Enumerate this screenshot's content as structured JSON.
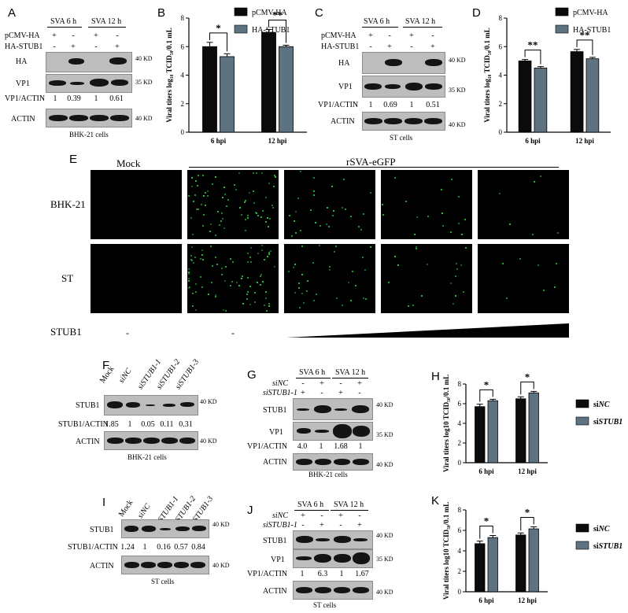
{
  "panels": {
    "A": {
      "letter": "A",
      "headers": [
        "SVA 6 h",
        "SVA 12 h"
      ],
      "row_labels": [
        "pCMV-HA",
        "HA-STUB1"
      ],
      "signs": [
        [
          "+",
          "-",
          "+",
          "-"
        ],
        [
          "-",
          "+",
          "-",
          "+"
        ]
      ],
      "blots": [
        "HA",
        "VP1",
        "ACTIN"
      ],
      "markers": [
        "40 KD",
        "35 KD",
        "40 KD"
      ],
      "ratio_label": "VP1/ACTIN",
      "ratios": [
        "1",
        "0.39",
        "1",
        "0.61"
      ],
      "cells": "BHK-21 cells"
    },
    "C": {
      "letter": "C",
      "headers": [
        "SVA 6 h",
        "SVA 12 h"
      ],
      "row_labels": [
        "pCMV-HA",
        "HA-STUB1"
      ],
      "signs": [
        [
          "+",
          "-",
          "+",
          "-"
        ],
        [
          "-",
          "+",
          "-",
          "+"
        ]
      ],
      "blots": [
        "HA",
        "VP1",
        "ACTIN"
      ],
      "markers": [
        "40 KD",
        "35 KD",
        "40 KD"
      ],
      "ratio_label": "VP1/ACTIN",
      "ratios": [
        "1",
        "0.69",
        "1",
        "0.51"
      ],
      "cells": "ST cells"
    },
    "E": {
      "letter": "E",
      "mock": "Mock",
      "virus": "rSVA-eGFP",
      "rows": [
        "BHK-21",
        "ST"
      ],
      "stub_label": "STUB1",
      "stub_signs": [
        "-",
        "-"
      ]
    },
    "F": {
      "letter": "F",
      "lanes": [
        "Mock",
        "siNC",
        "siSTUB1-1",
        "siSTUB1-2",
        "siSTUB1-3"
      ],
      "blots": [
        "STUB1",
        "ACTIN"
      ],
      "markers": [
        "40 KD",
        "40 KD"
      ],
      "ratio_label": "STUB1/ACTIN",
      "ratios": [
        "1.85",
        "1",
        "0.05",
        "0.11",
        "0.31"
      ],
      "cells": "BHK-21 cells"
    },
    "G": {
      "letter": "G",
      "headers": [
        "SVA 6 h",
        "SVA 12 h"
      ],
      "row_labels": [
        "siNC",
        "siSTUB1-1"
      ],
      "signs": [
        [
          "-",
          "+",
          "-",
          "+"
        ],
        [
          "+",
          "-",
          "+",
          "-"
        ]
      ],
      "blots": [
        "STUB1",
        "VP1",
        "ACTIN"
      ],
      "markers": [
        "40 KD",
        "35 KD",
        "40 KD"
      ],
      "ratio_label": "VP1/ACTIN",
      "ratios": [
        "4.0",
        "1",
        "1.68",
        "1"
      ],
      "cells": "BHK-21 cells"
    },
    "I": {
      "letter": "I",
      "lanes": [
        "Mock",
        "siNC",
        "siSTUB1-1",
        "siSTUB1-2",
        "siSTUB1-3"
      ],
      "blots": [
        "STUB1",
        "ACTIN"
      ],
      "markers": [
        "40 KD",
        "40 KD"
      ],
      "ratio_label": "STUB1/ACTIN",
      "ratios": [
        "1.24",
        "1",
        "0.16",
        "0.57",
        "0.84"
      ],
      "cells": "ST cells"
    },
    "J": {
      "letter": "J",
      "headers": [
        "SVA 6 h",
        "SVA 12 h"
      ],
      "row_labels": [
        "siNC",
        "siSTUB1-1"
      ],
      "signs": [
        [
          "+",
          "-",
          "+",
          "-"
        ],
        [
          "-",
          "+",
          "-",
          "+"
        ]
      ],
      "blots": [
        "STUB1",
        "VP1",
        "ACTIN"
      ],
      "markers": [
        "40 KD",
        "35 KD",
        "40 KD"
      ],
      "ratio_label": "VP1/ACTIN",
      "ratios": [
        "1",
        "6.3",
        "1",
        "1.67"
      ],
      "cells": "ST cells"
    }
  },
  "chart_data": [
    {
      "id": "B",
      "type": "bar",
      "letter": "B",
      "categories": [
        "6 hpi",
        "12 hpi"
      ],
      "series": [
        {
          "name": "pCMV-HA",
          "values": [
            6.0,
            7.0
          ],
          "errors": [
            0.3,
            0.2
          ]
        },
        {
          "name": "HA-STUB1",
          "values": [
            5.3,
            6.0
          ],
          "errors": [
            0.2,
            0.1
          ]
        }
      ],
      "ylabel": "Viral titers log₁₀ TCID₅₀/0.1 mL",
      "ylim": [
        0,
        8
      ],
      "yticks": [
        0,
        2,
        4,
        6,
        8
      ],
      "significance": [
        "*",
        "**"
      ],
      "legend_position": "top-right"
    },
    {
      "id": "D",
      "type": "bar",
      "letter": "D",
      "categories": [
        "6 hpi",
        "12 hpi"
      ],
      "series": [
        {
          "name": "pCMV-HA",
          "values": [
            5.0,
            5.65
          ],
          "errors": [
            0.1,
            0.15
          ]
        },
        {
          "name": "HA-STUB1",
          "values": [
            4.5,
            5.15
          ],
          "errors": [
            0.1,
            0.1
          ]
        }
      ],
      "ylabel": "Viral titers log₁₀ TCID₅₀/0.1 mL",
      "ylim": [
        0,
        8
      ],
      "yticks": [
        0,
        2,
        4,
        6,
        8
      ],
      "significance": [
        "**",
        "**"
      ],
      "legend_position": "top-right"
    },
    {
      "id": "H",
      "type": "bar",
      "letter": "H",
      "categories": [
        "6 hpi",
        "12 hpi"
      ],
      "series": [
        {
          "name": "siNC",
          "values": [
            5.7,
            6.5
          ],
          "errors": [
            0.25,
            0.2
          ]
        },
        {
          "name": "siSTUB1",
          "values": [
            6.3,
            7.1
          ],
          "errors": [
            0.15,
            0.15
          ]
        }
      ],
      "ylabel": "Viral titers log10 TCID₅₀/0.1 mL",
      "ylim": [
        0,
        8
      ],
      "yticks": [
        0,
        2,
        4,
        6,
        8
      ],
      "significance": [
        "*",
        "*"
      ],
      "legend_position": "right"
    },
    {
      "id": "K",
      "type": "bar",
      "letter": "K",
      "categories": [
        "6 hpi",
        "12 hpi"
      ],
      "series": [
        {
          "name": "siNC",
          "values": [
            4.7,
            5.55
          ],
          "errors": [
            0.25,
            0.2
          ]
        },
        {
          "name": "siSTUB1",
          "values": [
            5.3,
            6.15
          ],
          "errors": [
            0.2,
            0.2
          ]
        }
      ],
      "ylabel": "Viral titers log10 TCID₅₀/0.1 mL",
      "ylim": [
        0,
        8
      ],
      "yticks": [
        0,
        2,
        4,
        6,
        8
      ],
      "significance": [
        "*",
        "*"
      ],
      "legend_position": "right"
    }
  ],
  "colors": {
    "series1": "#0b0b0b",
    "series2": "#5d7382",
    "gfp": "#3cff5a"
  }
}
